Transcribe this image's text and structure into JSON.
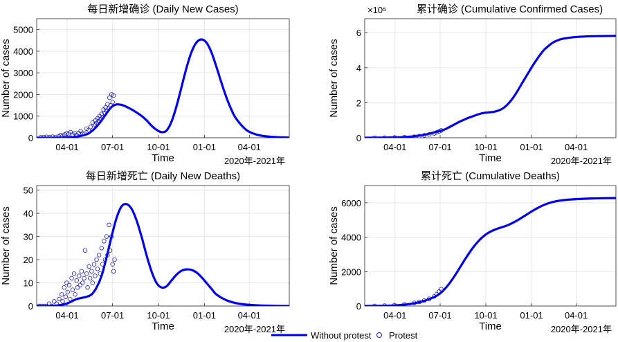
{
  "legend": {
    "items": [
      {
        "label": "Without protest",
        "style": "line"
      },
      {
        "label": "Protest",
        "style": "circle"
      }
    ]
  },
  "colors": {
    "model": "#0000ee",
    "observed": "#1a1acc",
    "grid": "#e6e6e6"
  },
  "chart_data": [
    {
      "id": "daily-cases",
      "type": "line",
      "title": "每日新增确诊 (Daily New Cases)",
      "xlabel": "Time",
      "x_sublabel": "2020年-2021年",
      "ylabel": "Number of cases",
      "x_tick_labels": [
        "04-01",
        "07-01",
        "10-01",
        "01-01",
        "04-01"
      ],
      "x_tick_days": [
        61,
        152,
        244,
        336,
        426
      ],
      "xlim_days": [
        0,
        506
      ],
      "ylim": [
        0,
        5500
      ],
      "y_ticks": [
        0,
        1000,
        2000,
        3000,
        4000,
        5000
      ],
      "y_exponent": "",
      "grid": true,
      "series": [
        {
          "name": "Without protest",
          "kind": "line",
          "x": [
            0,
            20,
            40,
            60,
            80,
            100,
            110,
            120,
            130,
            140,
            150,
            160,
            170,
            180,
            190,
            200,
            210,
            220,
            230,
            240,
            250,
            260,
            270,
            280,
            290,
            300,
            310,
            320,
            330,
            340,
            350,
            360,
            370,
            380,
            390,
            400,
            420,
            440,
            460,
            480,
            506
          ],
          "y": [
            0,
            2,
            5,
            15,
            50,
            160,
            300,
            520,
            800,
            1130,
            1420,
            1540,
            1520,
            1430,
            1310,
            1170,
            1010,
            810,
            560,
            370,
            260,
            330,
            740,
            1450,
            2330,
            3220,
            3950,
            4400,
            4540,
            4400,
            3950,
            3280,
            2550,
            1870,
            1300,
            870,
            360,
            150,
            65,
            30,
            10
          ]
        },
        {
          "name": "Protest",
          "kind": "scatter",
          "x": [
            8,
            14,
            20,
            26,
            32,
            38,
            44,
            48,
            52,
            56,
            60,
            64,
            68,
            72,
            76,
            80,
            84,
            88,
            92,
            96,
            100,
            104,
            108,
            112,
            116,
            118,
            120,
            122,
            124,
            126,
            128,
            130,
            132,
            134,
            136,
            138,
            140,
            142,
            144,
            146,
            148,
            150,
            152,
            154
          ],
          "y": [
            20,
            30,
            40,
            25,
            50,
            35,
            60,
            120,
            80,
            150,
            200,
            180,
            260,
            150,
            210,
            120,
            220,
            310,
            200,
            180,
            420,
            350,
            500,
            700,
            620,
            800,
            680,
            900,
            760,
            1000,
            850,
            1100,
            950,
            1300,
            1150,
            1400,
            1250,
            1550,
            1350,
            1850,
            1500,
            2000,
            1650,
            1950
          ]
        }
      ]
    },
    {
      "id": "cumulative-cases",
      "type": "line",
      "title": "累计确诊 (Cumulative Confirmed Cases)",
      "xlabel": "Time",
      "x_sublabel": "2020年-2021年",
      "ylabel": "Number of cases",
      "x_tick_labels": [
        "04-01",
        "07-01",
        "10-01",
        "01-01",
        "04-01"
      ],
      "x_tick_days": [
        61,
        152,
        244,
        336,
        426
      ],
      "xlim_days": [
        0,
        506
      ],
      "ylim": [
        0,
        6.8
      ],
      "y_ticks": [
        0,
        2,
        4,
        6
      ],
      "y_exponent": "×10⁵",
      "grid": true,
      "series": [
        {
          "name": "Without protest",
          "kind": "line",
          "x": [
            0,
            40,
            80,
            100,
            120,
            140,
            150,
            160,
            170,
            180,
            190,
            200,
            210,
            220,
            230,
            240,
            250,
            260,
            270,
            280,
            290,
            300,
            310,
            320,
            330,
            340,
            350,
            360,
            370,
            380,
            390,
            400,
            420,
            440,
            460,
            480,
            506
          ],
          "y": [
            0,
            0.01,
            0.04,
            0.09,
            0.17,
            0.31,
            0.38,
            0.46,
            0.6,
            0.75,
            0.9,
            1.03,
            1.15,
            1.25,
            1.35,
            1.42,
            1.45,
            1.48,
            1.56,
            1.71,
            1.97,
            2.33,
            2.78,
            3.26,
            3.73,
            4.19,
            4.61,
            4.98,
            5.24,
            5.45,
            5.58,
            5.66,
            5.74,
            5.78,
            5.8,
            5.81,
            5.82
          ]
        },
        {
          "name": "Protest",
          "kind": "scatter",
          "x": [
            20,
            40,
            60,
            80,
            100,
            110,
            120,
            130,
            140,
            145,
            150,
            154
          ],
          "y": [
            0.002,
            0.006,
            0.012,
            0.03,
            0.06,
            0.09,
            0.14,
            0.19,
            0.25,
            0.31,
            0.37,
            0.42
          ]
        }
      ]
    },
    {
      "id": "daily-deaths",
      "type": "line",
      "title": "每日新增死亡 (Daily New Deaths)",
      "xlabel": "Time",
      "x_sublabel": "2020年-2021年",
      "ylabel": "Number of cases",
      "x_tick_labels": [
        "04-01",
        "07-01",
        "10-01",
        "01-01",
        "04-01"
      ],
      "x_tick_days": [
        61,
        152,
        244,
        336,
        426
      ],
      "xlim_days": [
        0,
        506
      ],
      "ylim": [
        0,
        52
      ],
      "y_ticks": [
        0,
        10,
        20,
        30,
        40,
        50
      ],
      "y_exponent": "",
      "grid": true,
      "series": [
        {
          "name": "Without protest",
          "kind": "line",
          "x": [
            0,
            20,
            40,
            50,
            60,
            70,
            80,
            90,
            100,
            110,
            120,
            130,
            140,
            150,
            160,
            170,
            180,
            190,
            200,
            210,
            220,
            230,
            240,
            250,
            260,
            270,
            280,
            290,
            300,
            310,
            320,
            330,
            340,
            350,
            360,
            380,
            400,
            420,
            440,
            460,
            480,
            506
          ],
          "y": [
            0,
            0,
            0.2,
            0.5,
            1,
            2,
            3,
            3.5,
            4,
            5,
            8,
            13,
            21,
            30,
            38,
            43,
            44,
            42,
            37,
            30,
            22,
            15,
            10,
            8,
            8.5,
            11,
            13.5,
            15.2,
            15.8,
            15.6,
            14.5,
            12.5,
            10,
            7.5,
            5,
            2.5,
            1.2,
            0.6,
            0.3,
            0.15,
            0.05,
            0
          ]
        },
        {
          "name": "Protest",
          "kind": "scatter",
          "x": [
            5,
            10,
            15,
            20,
            25,
            30,
            35,
            40,
            45,
            50,
            52,
            55,
            58,
            60,
            62,
            65,
            67,
            70,
            72,
            75,
            77,
            80,
            82,
            85,
            87,
            90,
            92,
            95,
            97,
            100,
            102,
            105,
            107,
            110,
            112,
            115,
            117,
            120,
            122,
            125,
            127,
            130,
            132,
            135,
            137,
            140,
            142,
            145,
            147,
            150,
            152,
            154,
            156
          ],
          "y": [
            0,
            0,
            0,
            0,
            1,
            0,
            2,
            1,
            3,
            5,
            2,
            8,
            4,
            10,
            6,
            9,
            3,
            12,
            7,
            14,
            5,
            11,
            8,
            13,
            9,
            15,
            10,
            12,
            24,
            14,
            8,
            17,
            12,
            15,
            10,
            18,
            13,
            20,
            16,
            22,
            14,
            25,
            18,
            28,
            20,
            30,
            22,
            35,
            24,
            30,
            18,
            15,
            20
          ]
        }
      ]
    },
    {
      "id": "cumulative-deaths",
      "type": "line",
      "title": "累计死亡 (Cumulative Deaths)",
      "xlabel": "Time",
      "x_sublabel": "2020年-2021年",
      "ylabel": "Number of cases",
      "x_tick_labels": [
        "04-01",
        "07-01",
        "10-01",
        "01-01",
        "04-01"
      ],
      "x_tick_days": [
        61,
        152,
        244,
        336,
        426
      ],
      "xlim_days": [
        0,
        506
      ],
      "ylim": [
        0,
        7000
      ],
      "y_ticks": [
        0,
        2000,
        4000,
        6000
      ],
      "y_exponent": "",
      "grid": true,
      "series": [
        {
          "name": "Without protest",
          "kind": "line",
          "x": [
            0,
            40,
            60,
            80,
            100,
            120,
            140,
            150,
            160,
            170,
            180,
            190,
            200,
            210,
            220,
            230,
            240,
            250,
            260,
            270,
            280,
            290,
            300,
            310,
            320,
            330,
            340,
            350,
            360,
            370,
            380,
            390,
            400,
            420,
            440,
            460,
            480,
            506
          ],
          "y": [
            0,
            10,
            30,
            80,
            160,
            300,
            520,
            690,
            950,
            1290,
            1700,
            2150,
            2620,
            3060,
            3460,
            3800,
            4070,
            4270,
            4410,
            4520,
            4610,
            4720,
            4860,
            5020,
            5200,
            5380,
            5560,
            5720,
            5860,
            5970,
            6050,
            6110,
            6150,
            6200,
            6230,
            6250,
            6260,
            6270
          ]
        },
        {
          "name": "Protest",
          "kind": "scatter",
          "x": [
            20,
            40,
            60,
            80,
            100,
            110,
            120,
            130,
            140,
            145,
            150,
            154
          ],
          "y": [
            5,
            20,
            50,
            100,
            180,
            240,
            320,
            420,
            560,
            690,
            840,
            980
          ]
        }
      ]
    }
  ]
}
